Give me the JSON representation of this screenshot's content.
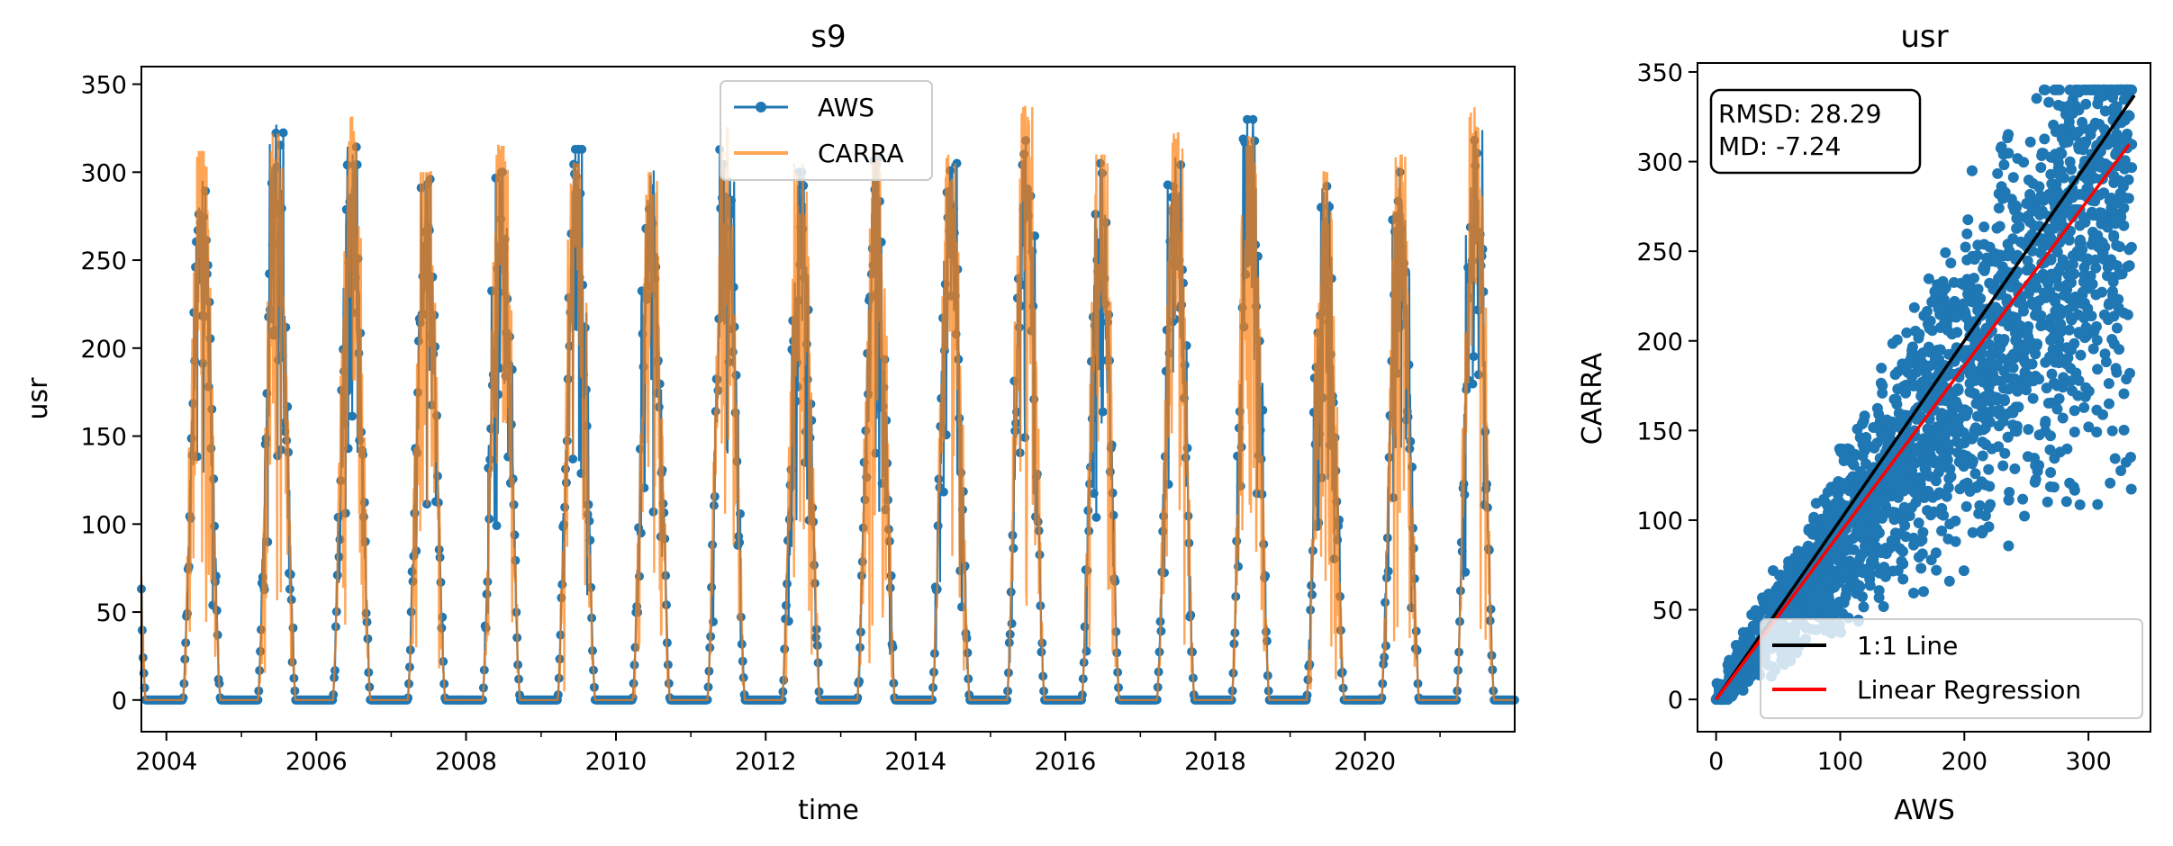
{
  "colors": {
    "aws": "#1f77b4",
    "carra": "#ff7f0e",
    "identity": "#000000",
    "regression": "#ff0000"
  },
  "chart_data": [
    {
      "type": "line",
      "title": "s9",
      "xlabel": "time",
      "ylabel": "usr",
      "xlim": [
        "2003-09-01",
        "2021-12-31"
      ],
      "ylim": [
        -18,
        360
      ],
      "x_ticks": [
        "2004",
        "2006",
        "2008",
        "2010",
        "2012",
        "2014",
        "2016",
        "2018",
        "2020"
      ],
      "y_ticks": [
        "0",
        "50",
        "100",
        "150",
        "200",
        "250",
        "300",
        "350"
      ],
      "legend_position": "top-center",
      "series": [
        {
          "name": "AWS",
          "description": "daily mean, seasonal cycle",
          "annual_summer_peaks": [
            {
              "year": 2004,
              "peak": 302
            },
            {
              "year": 2005,
              "peak": 327
            },
            {
              "year": 2006,
              "peak": 320
            },
            {
              "year": 2007,
              "peak": 296
            },
            {
              "year": 2008,
              "peak": 300
            },
            {
              "year": 2009,
              "peak": 313
            },
            {
              "year": 2010,
              "peak": 303
            },
            {
              "year": 2011,
              "peak": 320
            },
            {
              "year": 2012,
              "peak": 300
            },
            {
              "year": 2013,
              "peak": 308
            },
            {
              "year": 2014,
              "peak": 305
            },
            {
              "year": 2015,
              "peak": 318
            },
            {
              "year": 2016,
              "peak": 305
            },
            {
              "year": 2017,
              "peak": 315
            },
            {
              "year": 2018,
              "peak": 330
            },
            {
              "year": 2019,
              "peak": 292
            },
            {
              "year": 2020,
              "peak": 300
            },
            {
              "year": 2021,
              "peak": 330
            }
          ],
          "winter_min": 0
        },
        {
          "name": "CARRA",
          "description": "daily mean, seasonal cycle",
          "annual_summer_peaks": [
            {
              "year": 2004,
              "peak": 312
            },
            {
              "year": 2005,
              "peak": 322
            },
            {
              "year": 2006,
              "peak": 331
            },
            {
              "year": 2007,
              "peak": 300
            },
            {
              "year": 2008,
              "peak": 315
            },
            {
              "year": 2009,
              "peak": 305
            },
            {
              "year": 2010,
              "peak": 300
            },
            {
              "year": 2011,
              "peak": 325
            },
            {
              "year": 2012,
              "peak": 305
            },
            {
              "year": 2013,
              "peak": 315
            },
            {
              "year": 2014,
              "peak": 310
            },
            {
              "year": 2015,
              "peak": 337
            },
            {
              "year": 2016,
              "peak": 310
            },
            {
              "year": 2017,
              "peak": 322
            },
            {
              "year": 2018,
              "peak": 320
            },
            {
              "year": 2019,
              "peak": 300
            },
            {
              "year": 2020,
              "peak": 310
            },
            {
              "year": 2021,
              "peak": 337
            }
          ],
          "winter_min": 0
        }
      ]
    },
    {
      "type": "scatter",
      "title": "usr",
      "xlabel": "AWS",
      "ylabel": "CARRA",
      "xlim": [
        -15,
        350
      ],
      "ylim": [
        -18,
        355
      ],
      "x_ticks": [
        "0",
        "100",
        "200",
        "300"
      ],
      "y_ticks": [
        "0",
        "50",
        "100",
        "150",
        "200",
        "250",
        "300",
        "350"
      ],
      "stats": {
        "rmsd_label": "RMSD: 28.29",
        "md_label": "MD: -7.24"
      },
      "legend_position": "lower-right",
      "lines": [
        {
          "name": "1:1 Line",
          "slope": 1.0,
          "intercept": 0,
          "x_range": [
            0,
            337
          ]
        },
        {
          "name": "Linear Regression",
          "slope": 0.93,
          "intercept": 0,
          "x_range": [
            0,
            333
          ]
        }
      ],
      "points_description": "AWS vs CARRA daily values scattered around the 1:1 line, spread widening with magnitude"
    }
  ]
}
